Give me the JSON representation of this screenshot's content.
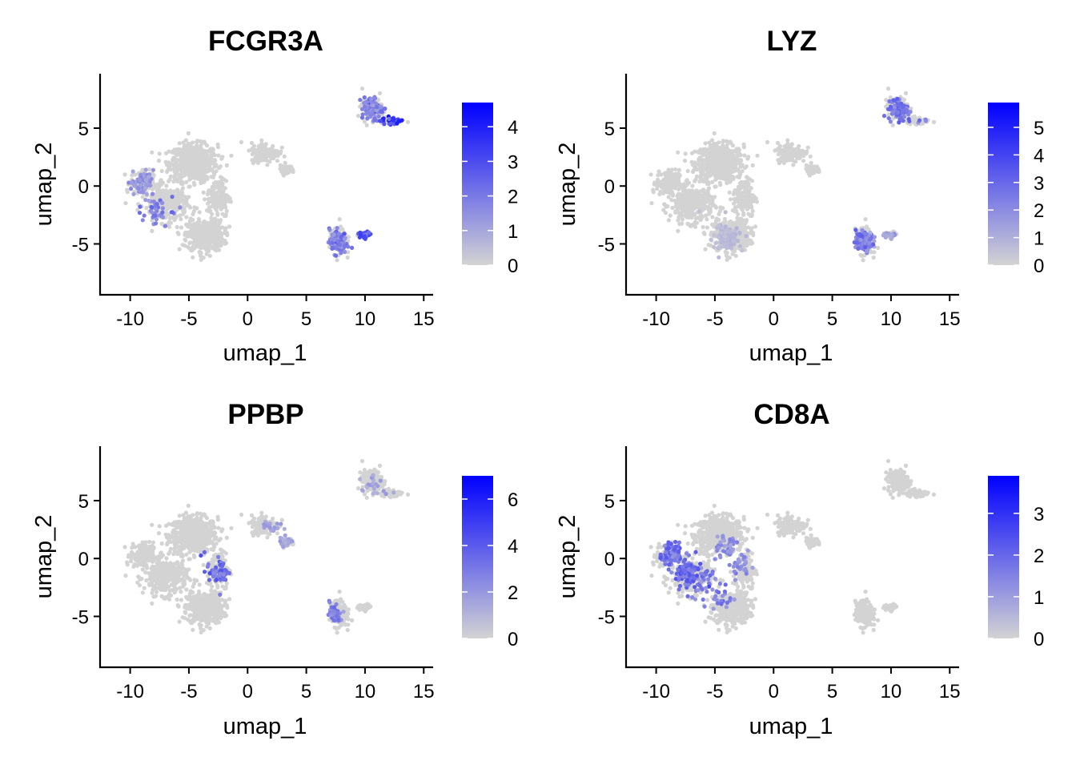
{
  "chart_data": [
    {
      "type": "scatter",
      "title": "FCGR3A",
      "xlabel": "umap_1",
      "ylabel": "umap_2",
      "xlim": [
        -11.2,
        15.8
      ],
      "ylim": [
        -8.7,
        9.7
      ],
      "xticks": [
        "-10",
        "-5",
        "0",
        "5",
        "10",
        "15"
      ],
      "yticks": [
        "-5",
        "0",
        "5"
      ],
      "colorbar": {
        "min": 0,
        "max": 4.7,
        "ticks": [
          "0",
          "1",
          "2",
          "3",
          "4"
        ],
        "low_color": "#d3d3d3",
        "high_color": "#0000ff"
      },
      "expression_hotspots": [
        {
          "x": 12.5,
          "y": 5.6,
          "value": 4.3
        },
        {
          "x": 10.0,
          "y": -4.2,
          "value": 3.8
        },
        {
          "x": 7.5,
          "y": -5.0,
          "value": 2.4
        },
        {
          "x": 10.5,
          "y": 7.0,
          "value": 2.2
        },
        {
          "x": -8.4,
          "y": -2.8,
          "value": 2.5
        },
        {
          "x": -9.3,
          "y": 0.2,
          "value": 1.8
        }
      ]
    },
    {
      "type": "scatter",
      "title": "LYZ",
      "xlabel": "umap_1",
      "ylabel": "umap_2",
      "xlim": [
        -11.2,
        15.8
      ],
      "ylim": [
        -8.7,
        9.7
      ],
      "xticks": [
        "-10",
        "-5",
        "0",
        "5",
        "10",
        "15"
      ],
      "yticks": [
        "-5",
        "0",
        "5"
      ],
      "colorbar": {
        "min": 0,
        "max": 5.9,
        "ticks": [
          "0",
          "1",
          "2",
          "3",
          "4",
          "5"
        ],
        "low_color": "#d3d3d3",
        "high_color": "#0000ff"
      },
      "expression_hotspots": [
        {
          "x": 10.7,
          "y": 6.3,
          "value": 3.4
        },
        {
          "x": 7.5,
          "y": -4.6,
          "value": 3.3
        },
        {
          "x": 9.3,
          "y": -4.4,
          "value": 2.0
        },
        {
          "x": -4.5,
          "y": -4.5,
          "value": 0.9
        }
      ]
    },
    {
      "type": "scatter",
      "title": "PPBP",
      "xlabel": "umap_1",
      "ylabel": "umap_2",
      "xlim": [
        -11.2,
        15.8
      ],
      "ylim": [
        -8.7,
        9.7
      ],
      "xticks": [
        "-10",
        "-5",
        "0",
        "5",
        "10",
        "15"
      ],
      "yticks": [
        "-5",
        "0",
        "5"
      ],
      "colorbar": {
        "min": 0,
        "max": 7.0,
        "ticks": [
          "0",
          "2",
          "4",
          "6"
        ],
        "low_color": "#d3d3d3",
        "high_color": "#0000ff"
      },
      "expression_hotspots": [
        {
          "x": -2.1,
          "y": -1.4,
          "value": 4.5
        },
        {
          "x": 6.1,
          "y": -4.5,
          "value": 3.5
        },
        {
          "x": 10.2,
          "y": 5.0,
          "value": 2.0
        },
        {
          "x": 3.2,
          "y": 2.1,
          "value": 2.0
        }
      ]
    },
    {
      "type": "scatter",
      "title": "CD8A",
      "xlabel": "umap_1",
      "ylabel": "umap_2",
      "xlim": [
        -11.2,
        15.8
      ],
      "ylim": [
        -8.7,
        9.7
      ],
      "xticks": [
        "-10",
        "-5",
        "0",
        "5",
        "10",
        "15"
      ],
      "yticks": [
        "-5",
        "0",
        "5"
      ],
      "colorbar": {
        "min": 0,
        "max": 3.9,
        "ticks": [
          "0",
          "1",
          "2",
          "3"
        ],
        "low_color": "#d3d3d3",
        "high_color": "#0000ff"
      },
      "expression_hotspots": [
        {
          "x": -7.5,
          "y": -1.0,
          "value": 2.6
        },
        {
          "x": -8.5,
          "y": 0.8,
          "value": 2.3
        },
        {
          "x": -5.5,
          "y": -2.5,
          "value": 2.0
        },
        {
          "x": -3.5,
          "y": 0.0,
          "value": 1.6
        }
      ]
    }
  ]
}
